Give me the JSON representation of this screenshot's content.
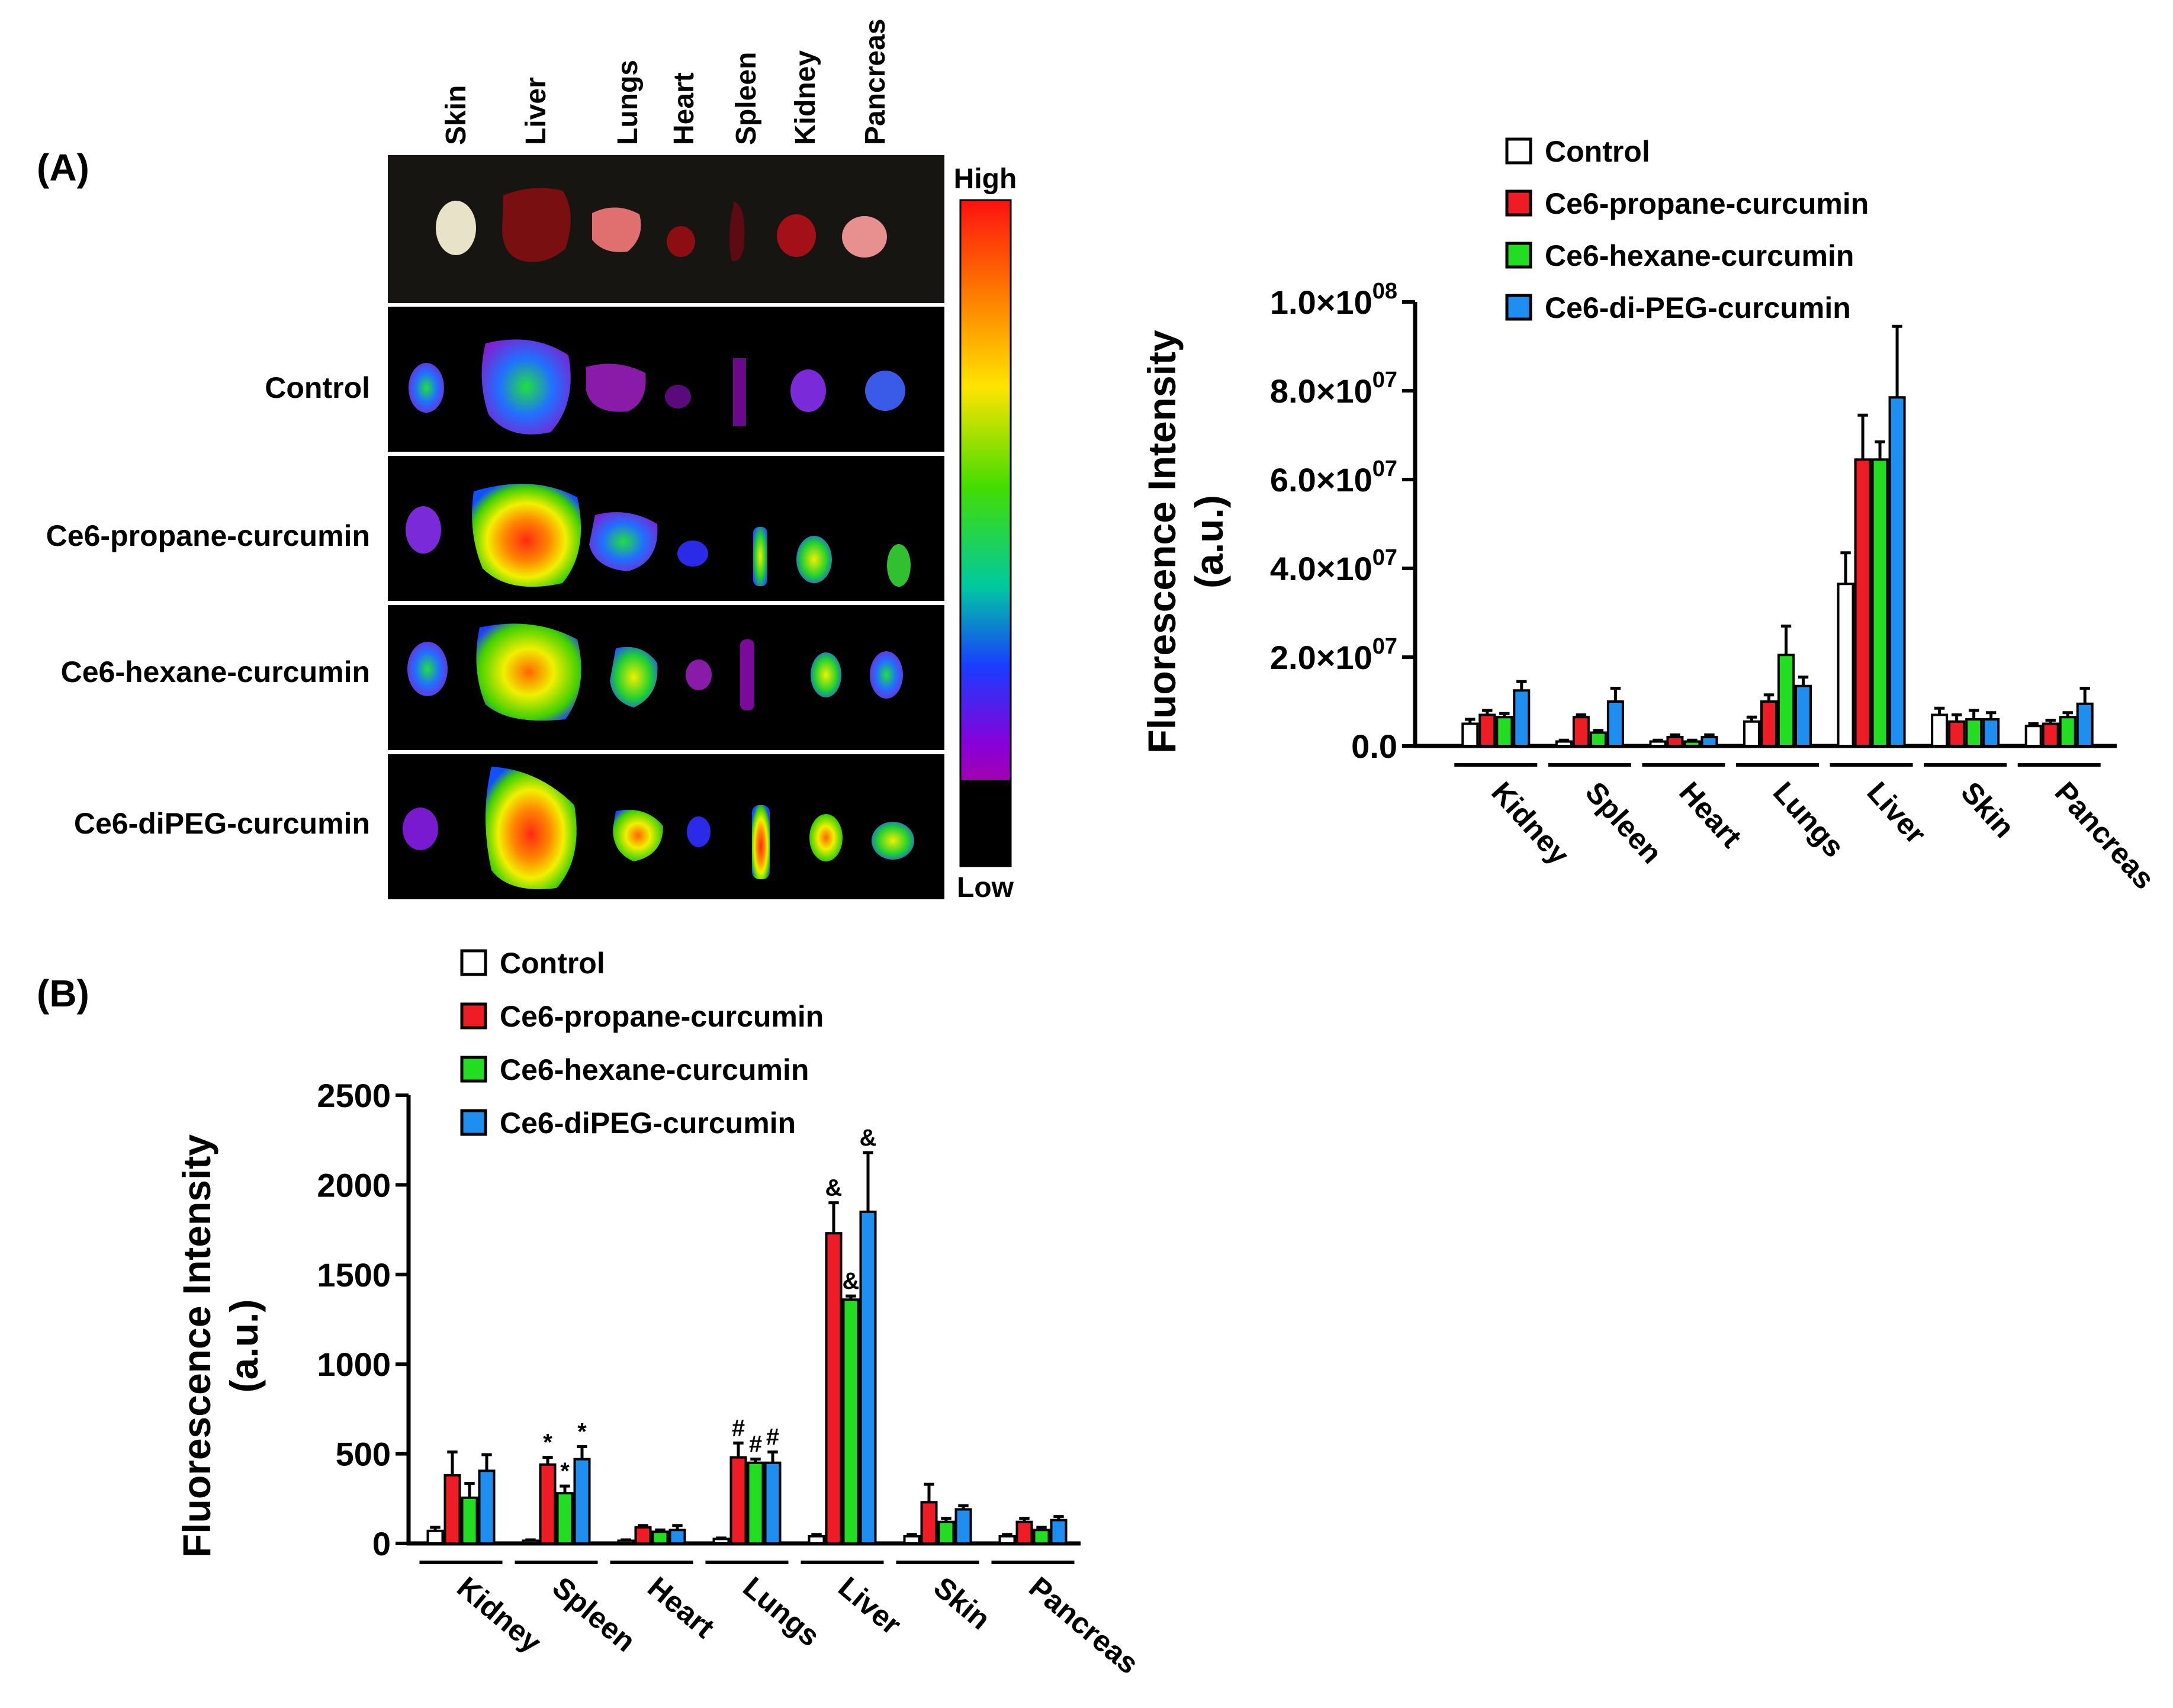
{
  "colors": {
    "control": "#ffffff",
    "propane": "#ee1c25",
    "hexane": "#22dd22",
    "peg": "#1e8ef0"
  },
  "panel_a": {
    "label": "(A)",
    "organs": [
      "Skin",
      "Liver",
      "Lungs",
      "Heart",
      "Spleen",
      "Kidney",
      "Pancreas"
    ],
    "rows": [
      "Control",
      "Ce6-propane-curcumin",
      "Ce6-hexane-curcumin",
      "Ce6-diPEG-curcumin"
    ],
    "scale_high": "High",
    "scale_low": "Low"
  },
  "panel_b": {
    "label": "(B)"
  },
  "chart_data": [
    {
      "type": "bar",
      "ylabel": "Fluorescence Intensity (a.u.)",
      "ylim": [
        0,
        100000000
      ],
      "yticks": [
        "0.0",
        "2.0×10^07",
        "4.0×10^07",
        "6.0×10^07",
        "8.0×10^07",
        "1.0×10^08"
      ],
      "ytick_base": [
        "0.0",
        "2.0×10",
        "4.0×10",
        "6.0×10",
        "8.0×10",
        "1.0×10"
      ],
      "ytick_exp": [
        "",
        "07",
        "07",
        "07",
        "07",
        "08"
      ],
      "categories": [
        "Kidney",
        "Spleen",
        "Heart",
        "Lungs",
        "Liver",
        "Skin",
        "Pancreas"
      ],
      "series": [
        {
          "name": "Control",
          "values": [
            5000000,
            1000000,
            1000000,
            5500000,
            36500000,
            7000000,
            4500000
          ],
          "errors": [
            1000000,
            300000,
            300000,
            1000000,
            7000000,
            1500000,
            500000
          ]
        },
        {
          "name": "Ce6-propane-curcumin",
          "values": [
            7000000,
            6500000,
            2000000,
            10000000,
            64500000,
            5500000,
            5000000
          ],
          "errors": [
            1000000,
            500000,
            500000,
            1500000,
            10000000,
            1500000,
            800000
          ]
        },
        {
          "name": "Ce6-hexane-curcumin",
          "values": [
            6500000,
            3000000,
            1000000,
            20500000,
            64500000,
            6000000,
            6500000
          ],
          "errors": [
            800000,
            500000,
            300000,
            6500000,
            4000000,
            2000000,
            1000000
          ]
        },
        {
          "name": "Ce6-di-PEG-curcumin",
          "values": [
            12500000,
            10000000,
            2000000,
            13500000,
            78500000,
            6000000,
            9500000
          ],
          "errors": [
            2000000,
            3000000,
            500000,
            2000000,
            16000000,
            1500000,
            3500000
          ]
        }
      ],
      "legend": "top",
      "grid": false
    },
    {
      "type": "bar",
      "ylabel": "Fluorescence Intensity (a.u.)",
      "ylim": [
        0,
        2500
      ],
      "yticks": [
        "0",
        "500",
        "1000",
        "1500",
        "2000",
        "2500"
      ],
      "categories": [
        "Kidney",
        "Spleen",
        "Heart",
        "Lungs",
        "Liver",
        "Skin",
        "Pancreas"
      ],
      "series": [
        {
          "name": "Control",
          "values": [
            70,
            15,
            15,
            25,
            40,
            40,
            40
          ],
          "errors": [
            20,
            5,
            5,
            5,
            10,
            10,
            10
          ]
        },
        {
          "name": "Ce6-propane-curcumin",
          "values": [
            380,
            440,
            90,
            480,
            1730,
            230,
            120
          ],
          "errors": [
            130,
            40,
            10,
            80,
            170,
            100,
            20
          ]
        },
        {
          "name": "Ce6-hexane-curcumin",
          "values": [
            255,
            280,
            65,
            450,
            1360,
            120,
            75
          ],
          "errors": [
            80,
            40,
            10,
            20,
            20,
            20,
            15
          ]
        },
        {
          "name": "Ce6-diPEG-curcumin",
          "values": [
            405,
            470,
            75,
            450,
            1850,
            190,
            130
          ],
          "errors": [
            90,
            70,
            25,
            60,
            330,
            20,
            20
          ]
        }
      ],
      "annotations": [
        {
          "category": "Spleen",
          "series": 1,
          "text": "*"
        },
        {
          "category": "Spleen",
          "series": 2,
          "text": "*"
        },
        {
          "category": "Spleen",
          "series": 3,
          "text": "*"
        },
        {
          "category": "Lungs",
          "series": 1,
          "text": "#"
        },
        {
          "category": "Lungs",
          "series": 2,
          "text": "#"
        },
        {
          "category": "Lungs",
          "series": 3,
          "text": "#"
        },
        {
          "category": "Liver",
          "series": 1,
          "text": "&"
        },
        {
          "category": "Liver",
          "series": 2,
          "text": "&"
        },
        {
          "category": "Liver",
          "series": 3,
          "text": "&"
        }
      ],
      "legend": "top",
      "grid": false
    }
  ]
}
